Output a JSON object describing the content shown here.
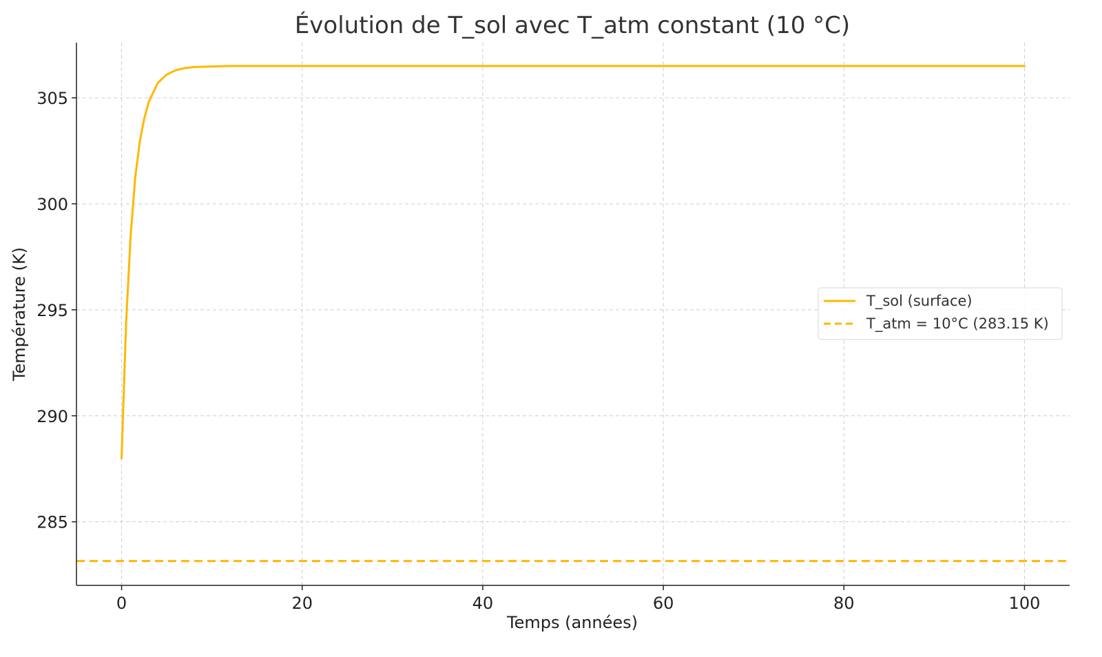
{
  "chart_data": {
    "type": "line",
    "title": "Évolution de T_sol avec T_atm constant (10 °C)",
    "xlabel": "Temps (années)",
    "ylabel": "Température (K)",
    "xlim": [
      -5,
      105
    ],
    "ylim": [
      282,
      307.6
    ],
    "xticks": [
      0,
      20,
      40,
      60,
      80,
      100
    ],
    "yticks": [
      285,
      290,
      295,
      300,
      305
    ],
    "xtick_labels": [
      "0",
      "20",
      "40",
      "60",
      "80",
      "100"
    ],
    "ytick_labels": [
      "285",
      "290",
      "295",
      "300",
      "305"
    ],
    "grid": true,
    "legend_position": "center-right",
    "series": [
      {
        "name": "T_sol (surface)",
        "color": "#FFB700",
        "style": "solid",
        "x": [
          0,
          0.5,
          1,
          1.5,
          2,
          2.5,
          3,
          4,
          5,
          6,
          7,
          8,
          10,
          12,
          15,
          20,
          30,
          40,
          50,
          60,
          70,
          80,
          90,
          100
        ],
        "y": [
          288.0,
          294.4,
          298.5,
          301.2,
          302.9,
          304.0,
          304.8,
          305.7,
          306.1,
          306.3,
          306.4,
          306.45,
          306.48,
          306.5,
          306.5,
          306.5,
          306.5,
          306.5,
          306.5,
          306.5,
          306.5,
          306.5,
          306.5,
          306.5
        ]
      },
      {
        "name": "T_atm = 10°C (283.15 K)",
        "color": "#FFB700",
        "style": "dashed",
        "x": [
          -5,
          105
        ],
        "y": [
          283.15,
          283.15
        ]
      }
    ]
  }
}
